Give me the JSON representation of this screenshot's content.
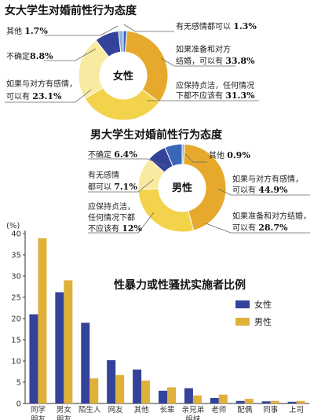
{
  "chart_data": [
    {
      "type": "pie",
      "title": "女大学生对婚前性行为态度",
      "center_label": "女性",
      "slices": [
        {
          "label": "有无感情都可以",
          "value": 1.3,
          "value_text": "1.3%",
          "color": "#3a66b8"
        },
        {
          "label": "如果准备和对方结婚，可以有",
          "value": 33.8,
          "value_text": "33.8%",
          "color": "#e7a92c"
        },
        {
          "label": "应保持贞洁，任何情况下都不应该有",
          "value": 31.3,
          "value_text": "31.3%",
          "color": "#f3d34b"
        },
        {
          "label": "如果与对方有感情，可以有",
          "value": 23.1,
          "value_text": "23.1%",
          "color": "#f9eaa1"
        },
        {
          "label": "不确定",
          "value": 8.8,
          "value_text": "8.8%",
          "color": "#34439a"
        },
        {
          "label": "其他",
          "value": 1.7,
          "value_text": "1.7%",
          "color": "#8fb4de"
        }
      ]
    },
    {
      "type": "pie",
      "title": "男大学生对婚前性行为态度",
      "center_label": "男性",
      "slices": [
        {
          "label": "其他",
          "value": 0.9,
          "value_text": "0.9%",
          "color": "#8fb4de"
        },
        {
          "label": "如果与对方有感情，可以有",
          "value": 44.9,
          "value_text": "44.9%",
          "color": "#e7a92c"
        },
        {
          "label": "如果准备和对方结婚，可以有",
          "value": 28.7,
          "value_text": "28.7%",
          "color": "#f3d34b"
        },
        {
          "label": "应保持贞洁，任何情况下都不应该有",
          "value": 12,
          "value_text": "12%",
          "color": "#f9eaa1"
        },
        {
          "label": "有无感情都可以",
          "value": 7.1,
          "value_text": "7.1%",
          "color": "#34439a"
        },
        {
          "label": "不确定",
          "value": 6.4,
          "value_text": "6.4%",
          "color": "#3a66b8"
        }
      ]
    },
    {
      "type": "bar",
      "title": "性暴力或性骚扰实施者比例",
      "ylabel": "(%)",
      "ylim": [
        0,
        40
      ],
      "yticks": [
        0,
        5,
        10,
        15,
        20,
        25,
        30,
        35,
        40
      ],
      "categories": [
        "同学朋友",
        "男女朋友",
        "陌生人",
        "网友",
        "其他",
        "长辈",
        "亲兄弟姐妹",
        "老师",
        "配偶",
        "同事",
        "上司"
      ],
      "category_lines": [
        [
          "同学",
          "朋友"
        ],
        [
          "男女",
          "朋友"
        ],
        [
          "陌生人"
        ],
        [
          "网友"
        ],
        [
          "其他"
        ],
        [
          "长辈"
        ],
        [
          "亲兄弟",
          "姐妹"
        ],
        [
          "老师"
        ],
        [
          "配偶"
        ],
        [
          "同事"
        ],
        [
          "上司"
        ]
      ],
      "series": [
        {
          "name": "女性",
          "color": "#34439a",
          "values": [
            21,
            26.2,
            19,
            10.2,
            8,
            3,
            3.6,
            1.3,
            0.6,
            0.5,
            0.4
          ]
        },
        {
          "name": "男性",
          "color": "#e0b13a",
          "values": [
            38.9,
            29,
            5.9,
            6.7,
            5.4,
            3.8,
            1.9,
            2.1,
            1.1,
            0.6,
            0.6
          ]
        }
      ]
    }
  ],
  "pie1": {
    "title": "女大学生对婚前性行为态度",
    "center": "女性",
    "labels": {
      "other": {
        "text": "其他 ",
        "num": "1.7%"
      },
      "unsure": {
        "text": "不确定",
        "num": "8.8%"
      },
      "feel_1": "如果与对方有感情，",
      "feel_2": "可以有 ",
      "feel_num": "23.1%",
      "any": {
        "text": "有无感情都可以 ",
        "num": "1.3%"
      },
      "marry_1": "如果准备和对方",
      "marry_2": "结婚，可以有 ",
      "marry_num": "33.8%",
      "chaste_1": "应保持贞洁，任何情况",
      "chaste_2": "下都不应该有 ",
      "chaste_num": "31.3%"
    }
  },
  "pie2": {
    "title": "男大学生对婚前性行为态度",
    "center": "男性",
    "labels": {
      "unsure": {
        "text": "不确定 ",
        "num": "6.4%"
      },
      "any_1": "有无感情",
      "any_2": "都可以 ",
      "any_num": "7.1%",
      "chaste_1": "应保持贞洁，",
      "chaste_2": "任何情况下都",
      "chaste_3": "不应该有 ",
      "chaste_num": "12%",
      "other": {
        "text": "其他 ",
        "num": "0.9%"
      },
      "feel_1": "如果与对方有感情，",
      "feel_2": "可以有 ",
      "feel_num": "44.9%",
      "marry_1": "如果准备和对方结婚，",
      "marry_2": "可以有 ",
      "marry_num": "28.7%"
    }
  },
  "bar": {
    "title": "性暴力或性骚扰实施者比例",
    "unit": "(%)",
    "legend_female": "女性",
    "legend_male": "男性"
  }
}
